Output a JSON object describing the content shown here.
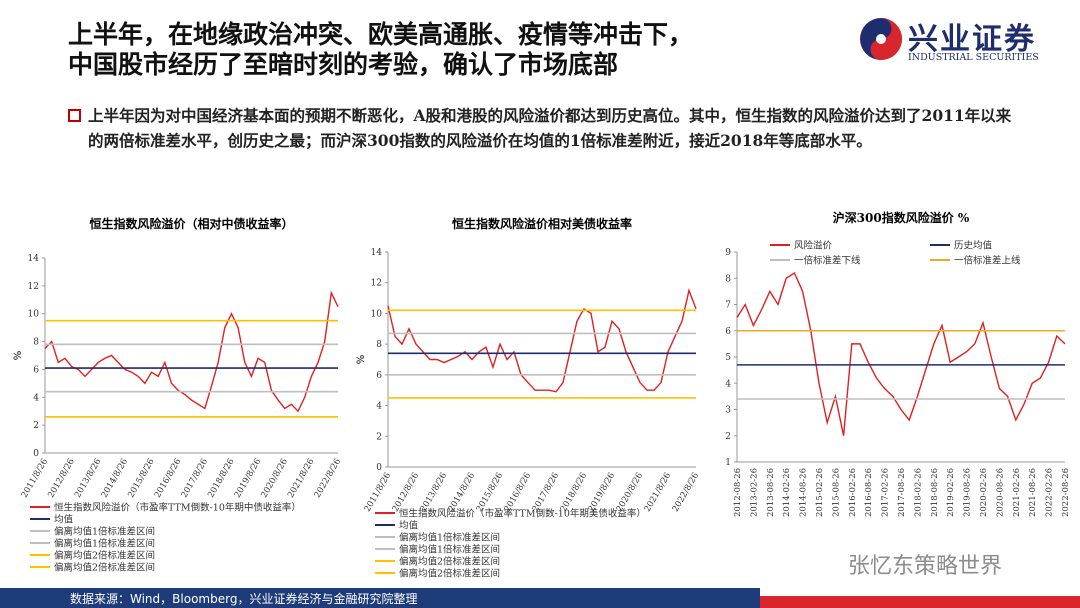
{
  "header": {
    "title_lines": [
      "上半年，在地缘政治冲突、欧美高通胀、疫情等冲击下，",
      "中国股市经历了至暗时刻的考验，确认了市场底部"
    ],
    "logo_cn": "兴业证券",
    "logo_en": "INDUSTRIAL SECURITIES"
  },
  "bullet": "上半年因为对中国经济基本面的预期不断恶化，A股和港股的风险溢价都达到历史高位。其中，恒生指数的风险溢价达到了2011年以来的两倍标准差水平，创历史之最；而沪深300指数的风险溢价在均值的1倍标准差附近，接近2018年等底部水平。",
  "footer": "数据来源：Wind，Bloomberg，兴业证券经济与金融研究院整理",
  "watermark": "张忆东策略世界",
  "chart_data": [
    {
      "type": "line",
      "title": "恒生指数风险溢价（相对中债收益率）",
      "ylabel": "%",
      "legend": "bottom",
      "x": [
        "2011/8/26",
        "2011/11/26",
        "2012/2/26",
        "2012/5/26",
        "2012/8/26",
        "2012/11/26",
        "2013/2/26",
        "2013/5/26",
        "2013/8/26",
        "2013/11/26",
        "2014/2/26",
        "2014/5/26",
        "2014/8/26",
        "2014/11/26",
        "2015/2/26",
        "2015/5/26",
        "2015/8/26",
        "2015/11/26",
        "2016/2/26",
        "2016/5/26",
        "2016/8/26",
        "2016/11/26",
        "2017/2/26",
        "2017/5/26",
        "2017/8/26",
        "2017/11/26",
        "2018/2/26",
        "2018/5/26",
        "2018/8/26",
        "2018/11/26",
        "2019/2/26",
        "2019/5/26",
        "2019/8/26",
        "2019/11/26",
        "2020/2/26",
        "2020/5/26",
        "2020/8/26",
        "2020/11/26",
        "2021/2/26",
        "2021/5/26",
        "2021/8/26",
        "2021/11/26",
        "2022/2/26",
        "2022/5/26",
        "2022/8/26"
      ],
      "xticks": [
        "2011/8/26",
        "2012/8/26",
        "2013/8/26",
        "2014/8/26",
        "2015/8/26",
        "2016/8/26",
        "2017/8/26",
        "2018/8/26",
        "2019/8/26",
        "2020/8/26",
        "2021/8/26",
        "2022/8/26"
      ],
      "ylim": [
        0,
        14
      ],
      "yticks": [
        0,
        2,
        4,
        6,
        8,
        10,
        12,
        14
      ],
      "series": [
        {
          "name": "恒生指数风险溢价（市盈率TTM倒数-10年期中债收益率）",
          "color": "#e02020",
          "values": [
            7.5,
            8.0,
            6.5,
            6.8,
            6.2,
            6.0,
            5.5,
            6.0,
            6.5,
            6.8,
            7.0,
            6.5,
            6.0,
            5.8,
            5.5,
            5.0,
            5.8,
            5.5,
            6.5,
            5.0,
            4.5,
            4.2,
            3.8,
            3.5,
            3.2,
            4.8,
            6.5,
            9.0,
            10.0,
            9.0,
            6.5,
            5.5,
            6.8,
            6.5,
            4.5,
            3.8,
            3.2,
            3.5,
            3.0,
            4.0,
            5.5,
            6.5,
            8.0,
            11.5,
            10.5
          ]
        },
        {
          "name": "均值",
          "color": "#1f2d6e",
          "value": 6.1
        },
        {
          "name": "偏离均值1倍标准差区间",
          "color": "#bfbfbf",
          "value": 7.8
        },
        {
          "name": "偏离均值1倍标准差区间",
          "color": "#bfbfbf",
          "value": 4.4
        },
        {
          "name": "偏离均值2倍标准差区间",
          "color": "#ffc000",
          "value": 9.5
        },
        {
          "name": "偏离均值2倍标准差区间",
          "color": "#ffc000",
          "value": 2.6
        }
      ]
    },
    {
      "type": "line",
      "title": "恒生指数风险溢价相对美债收益率",
      "ylabel": "%",
      "legend": "bottom",
      "x": [
        "2011/8/26",
        "2011/11/26",
        "2012/2/26",
        "2012/5/26",
        "2012/8/26",
        "2012/11/26",
        "2013/2/26",
        "2013/5/26",
        "2013/8/26",
        "2013/11/26",
        "2014/2/26",
        "2014/5/26",
        "2014/8/26",
        "2014/11/26",
        "2015/2/26",
        "2015/5/26",
        "2015/8/26",
        "2015/11/26",
        "2016/2/26",
        "2016/5/26",
        "2016/8/26",
        "2016/11/26",
        "2017/2/26",
        "2017/5/26",
        "2017/8/26",
        "2017/11/26",
        "2018/2/26",
        "2018/5/26",
        "2018/8/26",
        "2018/11/26",
        "2019/2/26",
        "2019/5/26",
        "2019/8/26",
        "2019/11/26",
        "2020/2/26",
        "2020/5/26",
        "2020/8/26",
        "2020/11/26",
        "2021/2/26",
        "2021/5/26",
        "2021/8/26",
        "2021/11/26",
        "2022/2/26",
        "2022/5/26",
        "2022/8/26"
      ],
      "xticks": [
        "2011/8/26",
        "2012/8/26",
        "2013/8/26",
        "2014/8/26",
        "2015/8/26",
        "2016/8/26",
        "2017/8/26",
        "2018/8/26",
        "2019/8/26",
        "2020/8/26",
        "2021/8/26",
        "2022/8/26"
      ],
      "ylim": [
        0,
        14
      ],
      "yticks": [
        0,
        2,
        4,
        6,
        8,
        10,
        12,
        14
      ],
      "series": [
        {
          "name": "恒生指数风险溢价（市盈率TTM倒数-10年期美债收益率）",
          "color": "#e02020",
          "values": [
            10.5,
            8.5,
            8.0,
            9.0,
            8.0,
            7.5,
            7.0,
            7.0,
            6.8,
            7.0,
            7.2,
            7.5,
            7.0,
            7.5,
            7.8,
            6.5,
            8.0,
            7.0,
            7.5,
            6.0,
            5.5,
            5.0,
            5.0,
            5.0,
            4.9,
            5.5,
            7.5,
            9.5,
            10.3,
            10.0,
            7.5,
            7.8,
            9.5,
            9.0,
            7.5,
            6.5,
            5.5,
            5.0,
            5.0,
            5.5,
            7.5,
            8.5,
            9.5,
            11.5,
            10.3
          ]
        },
        {
          "name": "均值",
          "color": "#1f2d6e",
          "value": 7.4
        },
        {
          "name": "偏离均值1倍标准差区间",
          "color": "#bfbfbf",
          "value": 8.7
        },
        {
          "name": "偏离均值1倍标准差区间",
          "color": "#bfbfbf",
          "value": 6.0
        },
        {
          "name": "偏离均值2倍标准差区间",
          "color": "#ffc000",
          "value": 10.2
        },
        {
          "name": "偏离均值2倍标准差区间",
          "color": "#ffc000",
          "value": 4.5
        }
      ]
    },
    {
      "type": "line",
      "title": "沪深300指数风险溢价 %",
      "legend": "top",
      "x": [
        "2012-08-26",
        "2012-11-26",
        "2013-02-26",
        "2013-05-26",
        "2013-08-26",
        "2013-11-26",
        "2014-02-26",
        "2014-05-26",
        "2014-08-26",
        "2014-11-26",
        "2015-02-26",
        "2015-05-26",
        "2015-08-26",
        "2015-11-26",
        "2016-02-26",
        "2016-05-26",
        "2016-08-26",
        "2016-11-26",
        "2017-02-26",
        "2017-05-26",
        "2017-08-26",
        "2017-11-26",
        "2018-02-26",
        "2018-05-26",
        "2018-08-26",
        "2018-11-26",
        "2019-02-26",
        "2019-05-26",
        "2019-08-26",
        "2019-11-26",
        "2020-02-26",
        "2020-05-26",
        "2020-08-26",
        "2020-11-26",
        "2021-02-26",
        "2021-05-26",
        "2021-08-26",
        "2021-11-26",
        "2022-02-26",
        "2022-05-26",
        "2022-08-26"
      ],
      "xticks": [
        "2012-08-26",
        "2013-02-26",
        "2013-08-26",
        "2014-02-26",
        "2014-08-26",
        "2015-02-26",
        "2015-08-26",
        "2016-02-26",
        "2016-08-26",
        "2017-02-26",
        "2017-08-26",
        "2018-02-26",
        "2018-08-26",
        "2019-02-26",
        "2019-08-26",
        "2020-02-26",
        "2020-08-26",
        "2021-02-26",
        "2021-08-26",
        "2022-02-26",
        "2022-08-26"
      ],
      "ylim": [
        1,
        9
      ],
      "yticks": [
        1,
        2,
        3,
        4,
        5,
        6,
        7,
        8,
        9
      ],
      "series": [
        {
          "name": "风险溢价",
          "color": "#e02020",
          "values": [
            6.5,
            7.0,
            6.2,
            6.8,
            7.5,
            7.0,
            8.0,
            8.2,
            7.5,
            6.0,
            4.0,
            2.5,
            3.5,
            2.0,
            5.5,
            5.5,
            4.8,
            4.2,
            3.8,
            3.5,
            3.0,
            2.6,
            3.5,
            4.5,
            5.5,
            6.2,
            4.8,
            5.0,
            5.2,
            5.5,
            6.3,
            5.0,
            3.8,
            3.5,
            2.6,
            3.2,
            4.0,
            4.2,
            4.8,
            5.8,
            5.5
          ]
        },
        {
          "name": "历史均值",
          "color": "#1f2d6e",
          "value": 4.7
        },
        {
          "name": "一倍标准差下线",
          "color": "#bfbfbf",
          "value": 3.4
        },
        {
          "name": "一倍标准差上线",
          "color": "#f5a623",
          "value": 6.0
        }
      ]
    }
  ]
}
